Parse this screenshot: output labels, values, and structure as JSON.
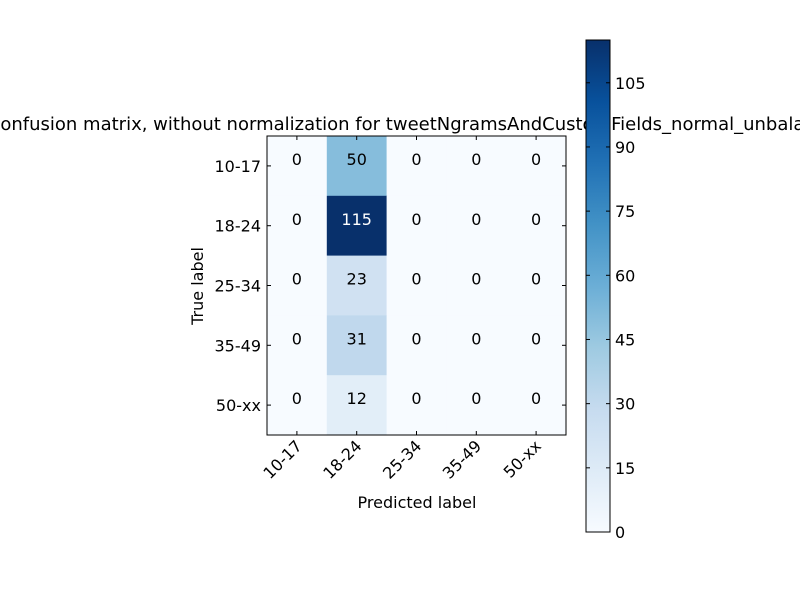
{
  "chart_data": {
    "type": "heatmap",
    "title": "Confusion matrix, without normalization for tweetNgramsAndCustomFields_normal_unbalanced",
    "xlabel": "Predicted label",
    "ylabel": "True label",
    "x_categories": [
      "10-17",
      "18-24",
      "25-34",
      "35-49",
      "50-xx"
    ],
    "y_categories": [
      "10-17",
      "18-24",
      "25-34",
      "35-49",
      "50-xx"
    ],
    "values": [
      [
        0,
        50,
        0,
        0,
        0
      ],
      [
        0,
        115,
        0,
        0,
        0
      ],
      [
        0,
        23,
        0,
        0,
        0
      ],
      [
        0,
        31,
        0,
        0,
        0
      ],
      [
        0,
        12,
        0,
        0,
        0
      ]
    ],
    "colormap": "Blues",
    "colorbar": {
      "min": 0,
      "max": 115,
      "ticks": [
        "0",
        "15",
        "30",
        "45",
        "60",
        "75",
        "90",
        "105"
      ]
    },
    "x_tick_rotation_deg": 45,
    "grid": false
  }
}
